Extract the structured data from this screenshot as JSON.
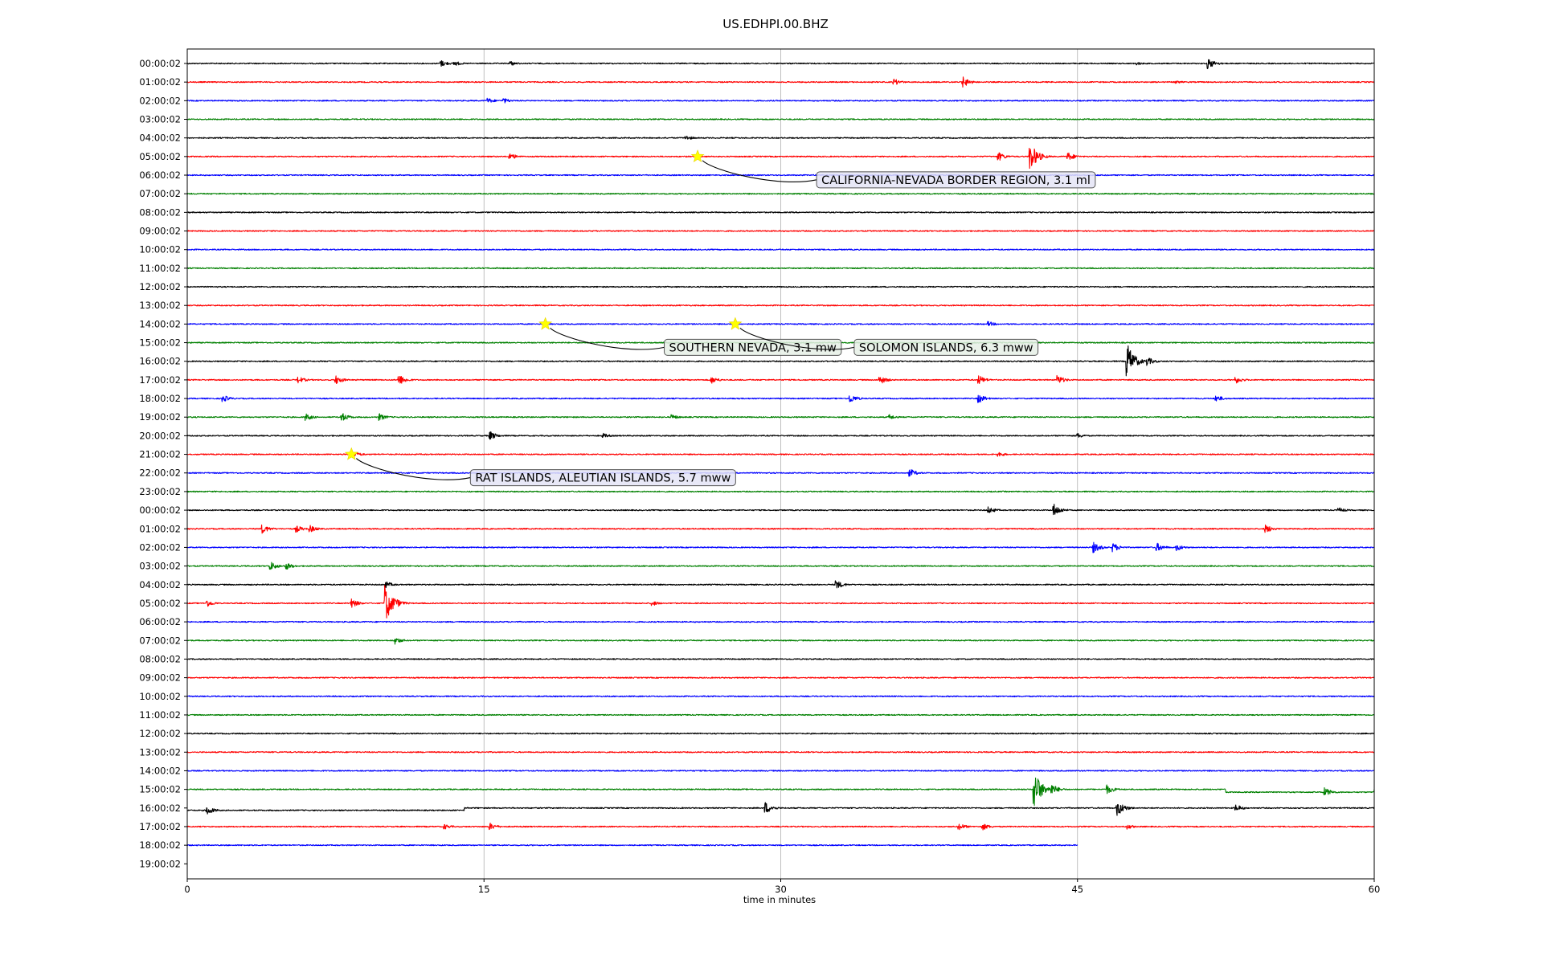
{
  "chart_data": {
    "type": "seismogram",
    "title": "US.EDHPI.00.BHZ",
    "xlabel": "time in minutes",
    "xlim": [
      0,
      60
    ],
    "xticks": [
      0,
      15,
      30,
      45,
      60
    ],
    "grid": "vertical lines at 15, 30, 45 minutes",
    "trace_colors": [
      "#000000",
      "#ff0000",
      "#0000ff",
      "#008000"
    ],
    "hour_labels": [
      "00:00:02",
      "01:00:02",
      "02:00:02",
      "03:00:02",
      "04:00:02",
      "05:00:02",
      "06:00:02",
      "07:00:02",
      "08:00:02",
      "09:00:02",
      "10:00:02",
      "11:00:02",
      "12:00:02",
      "13:00:02",
      "14:00:02",
      "15:00:02",
      "16:00:02",
      "17:00:02",
      "18:00:02",
      "19:00:02",
      "20:00:02",
      "21:00:02",
      "22:00:02",
      "23:00:02",
      "00:00:02",
      "01:00:02",
      "02:00:02",
      "03:00:02",
      "04:00:02",
      "05:00:02",
      "06:00:02",
      "07:00:02",
      "08:00:02",
      "09:00:02",
      "10:00:02",
      "11:00:02",
      "12:00:02",
      "13:00:02",
      "14:00:02",
      "15:00:02",
      "16:00:02",
      "17:00:02",
      "18:00:02",
      "19:00:02"
    ],
    "trace_end_minutes": [
      60,
      60,
      60,
      60,
      60,
      60,
      60,
      60,
      60,
      60,
      60,
      60,
      60,
      60,
      60,
      60,
      60,
      60,
      60,
      60,
      60,
      60,
      60,
      60,
      60,
      60,
      60,
      60,
      60,
      60,
      60,
      60,
      60,
      60,
      60,
      60,
      60,
      60,
      60,
      60,
      60,
      60,
      45,
      0
    ],
    "bursts": [
      {
        "row": 0,
        "t": 12.8,
        "amp": 0.4
      },
      {
        "row": 0,
        "t": 13.5,
        "amp": 0.3
      },
      {
        "row": 0,
        "t": 16.3,
        "amp": 0.3
      },
      {
        "row": 0,
        "t": 48,
        "amp": 0.2
      },
      {
        "row": 0,
        "t": 51.6,
        "amp": 0.6
      },
      {
        "row": 1,
        "t": 35.7,
        "amp": 0.4
      },
      {
        "row": 1,
        "t": 39.2,
        "amp": 0.6
      },
      {
        "row": 1,
        "t": 50,
        "amp": 0.2
      },
      {
        "row": 2,
        "t": 15.2,
        "amp": 0.3
      },
      {
        "row": 2,
        "t": 16,
        "amp": 0.3
      },
      {
        "row": 4,
        "t": 25.2,
        "amp": 0.3
      },
      {
        "row": 5,
        "t": 16.3,
        "amp": 0.4
      },
      {
        "row": 5,
        "t": 41,
        "amp": 0.5
      },
      {
        "row": 5,
        "t": 42.6,
        "amp": 1.6
      },
      {
        "row": 5,
        "t": 44.5,
        "amp": 0.5
      },
      {
        "row": 14,
        "t": 40.5,
        "amp": 0.3
      },
      {
        "row": 16,
        "t": 47.5,
        "amp": 2.0
      },
      {
        "row": 16,
        "t": 48.5,
        "amp": 0.5
      },
      {
        "row": 17,
        "t": 5.6,
        "amp": 0.4
      },
      {
        "row": 17,
        "t": 7.5,
        "amp": 0.5
      },
      {
        "row": 17,
        "t": 10.7,
        "amp": 0.6
      },
      {
        "row": 17,
        "t": 26.5,
        "amp": 0.4
      },
      {
        "row": 17,
        "t": 35,
        "amp": 0.5
      },
      {
        "row": 17,
        "t": 40,
        "amp": 0.5
      },
      {
        "row": 17,
        "t": 44,
        "amp": 0.5
      },
      {
        "row": 17,
        "t": 53,
        "amp": 0.4
      },
      {
        "row": 18,
        "t": 1.8,
        "amp": 0.4
      },
      {
        "row": 18,
        "t": 33.5,
        "amp": 0.5
      },
      {
        "row": 18,
        "t": 40,
        "amp": 0.5
      },
      {
        "row": 18,
        "t": 52,
        "amp": 0.4
      },
      {
        "row": 19,
        "t": 6,
        "amp": 0.4
      },
      {
        "row": 19,
        "t": 7.8,
        "amp": 0.5
      },
      {
        "row": 19,
        "t": 9.7,
        "amp": 0.4
      },
      {
        "row": 19,
        "t": 24.5,
        "amp": 0.3
      },
      {
        "row": 19,
        "t": 35.5,
        "amp": 0.3
      },
      {
        "row": 20,
        "t": 15.3,
        "amp": 0.5
      },
      {
        "row": 20,
        "t": 21,
        "amp": 0.3
      },
      {
        "row": 20,
        "t": 45,
        "amp": 0.3
      },
      {
        "row": 21,
        "t": 8.4,
        "amp": 0.4
      },
      {
        "row": 21,
        "t": 41,
        "amp": 0.3
      },
      {
        "row": 22,
        "t": 36.5,
        "amp": 0.5
      },
      {
        "row": 24,
        "t": 40.5,
        "amp": 0.4
      },
      {
        "row": 24,
        "t": 43.8,
        "amp": 0.7
      },
      {
        "row": 24,
        "t": 58.2,
        "amp": 0.3
      },
      {
        "row": 25,
        "t": 3.8,
        "amp": 0.5
      },
      {
        "row": 25,
        "t": 5.5,
        "amp": 0.4
      },
      {
        "row": 25,
        "t": 6.2,
        "amp": 0.4
      },
      {
        "row": 25,
        "t": 54.5,
        "amp": 0.5
      },
      {
        "row": 26,
        "t": 45.8,
        "amp": 0.6
      },
      {
        "row": 26,
        "t": 46.8,
        "amp": 0.5
      },
      {
        "row": 26,
        "t": 49,
        "amp": 0.5
      },
      {
        "row": 26,
        "t": 50,
        "amp": 0.4
      },
      {
        "row": 27,
        "t": 4.2,
        "amp": 0.5
      },
      {
        "row": 27,
        "t": 5,
        "amp": 0.4
      },
      {
        "row": 28,
        "t": 10,
        "amp": 0.4
      },
      {
        "row": 28,
        "t": 32.8,
        "amp": 0.5
      },
      {
        "row": 29,
        "t": 1,
        "amp": 0.4
      },
      {
        "row": 29,
        "t": 8.3,
        "amp": 0.5
      },
      {
        "row": 29,
        "t": 10,
        "amp": 2.2
      },
      {
        "row": 29,
        "t": 10.5,
        "amp": 0.6
      },
      {
        "row": 29,
        "t": 23.5,
        "amp": 0.3
      },
      {
        "row": 31,
        "t": 10.5,
        "amp": 0.4
      },
      {
        "row": 39,
        "t": 42.8,
        "amp": 2.2
      },
      {
        "row": 39,
        "t": 43.7,
        "amp": 0.6
      },
      {
        "row": 39,
        "t": 46.5,
        "amp": 0.5
      },
      {
        "row": 39,
        "t": 57.5,
        "amp": 0.5
      },
      {
        "row": 40,
        "t": 1,
        "amp": 0.5
      },
      {
        "row": 40,
        "t": 29.2,
        "amp": 0.7
      },
      {
        "row": 40,
        "t": 47,
        "amp": 0.9
      },
      {
        "row": 40,
        "t": 53,
        "amp": 0.4
      },
      {
        "row": 41,
        "t": 13,
        "amp": 0.3
      },
      {
        "row": 41,
        "t": 15.3,
        "amp": 0.4
      },
      {
        "row": 41,
        "t": 39,
        "amp": 0.4
      },
      {
        "row": 41,
        "t": 40.2,
        "amp": 0.4
      },
      {
        "row": 41,
        "t": 47.5,
        "amp": 0.3
      }
    ],
    "offsets": [
      {
        "row": 39,
        "from": 52.5,
        "shift": 0.3
      },
      {
        "row": 40,
        "from": 0,
        "to": 14,
        "shift": 0.25
      }
    ],
    "events": [
      {
        "label": "CALIFORNIA-NEVADA BORDER REGION, 3.1 ml",
        "row": 5,
        "t": 25.8,
        "box": "blue"
      },
      {
        "label": "SOUTHERN NEVADA, 3.1 mw",
        "row": 14,
        "t": 18.1,
        "box": "green"
      },
      {
        "label": "SOLOMON ISLANDS, 6.3 mww",
        "row": 14,
        "t": 27.7,
        "box": "green"
      },
      {
        "label": "RAT ISLANDS, ALEUTIAN ISLANDS, 5.7 mww",
        "row": 21,
        "t": 8.3,
        "box": "blue"
      }
    ]
  }
}
